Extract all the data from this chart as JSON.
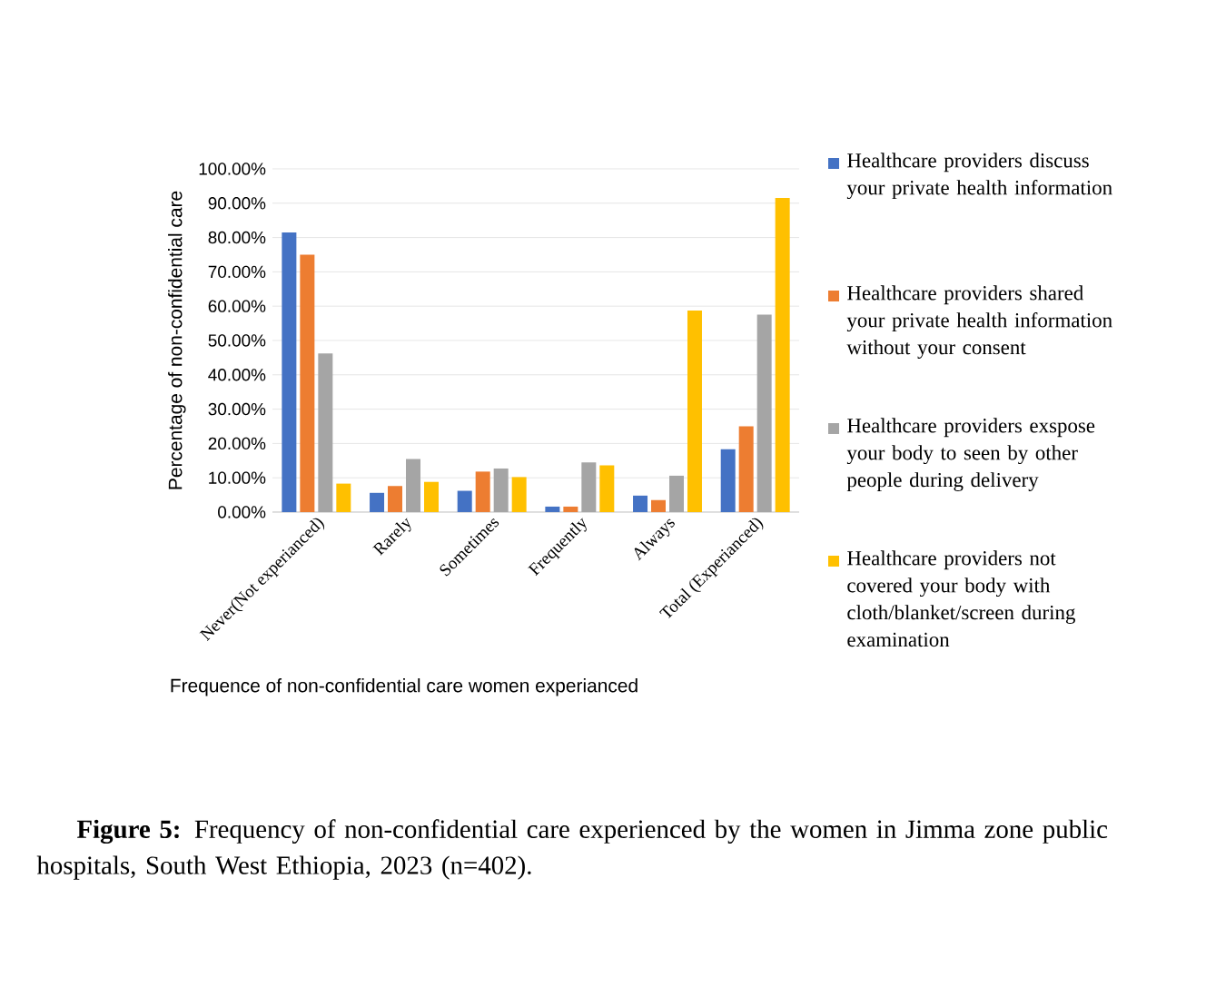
{
  "chart_data": {
    "type": "bar",
    "xlabel": "Frequence of non-confidential care women experianced",
    "ylabel": "Percentage of non-confidential care",
    "categories": [
      "Never(Not experianced)",
      "Rarely",
      "Sometimes",
      "Frequently",
      "Always",
      "Total (Experianced)"
    ],
    "series": [
      {
        "name": "Healthcare providers discuss your private health information",
        "color": "#4472c4",
        "values": [
          81.5,
          5.6,
          6.2,
          1.6,
          4.8,
          18.3
        ]
      },
      {
        "name": "Healthcare providers shared your private health information  without your consent",
        "color": "#ed7d31",
        "values": [
          75,
          7.6,
          11.8,
          1.6,
          3.5,
          25
        ]
      },
      {
        "name": "Healthcare providers exspose your  body to seen by other people during delivery",
        "color": "#a5a5a5",
        "values": [
          46.2,
          15.5,
          12.7,
          14.5,
          10.6,
          57.5
        ]
      },
      {
        "name": "Healthcare providers not covered your body with cloth/blanket/screen during examination",
        "color": "#ffc000",
        "values": [
          8.3,
          8.8,
          10.2,
          13.6,
          58.7,
          91.5
        ]
      }
    ],
    "ylim": [
      0,
      100
    ],
    "yticks": [
      {
        "value": 0,
        "label": "0.00%"
      },
      {
        "value": 10,
        "label": "10.00%"
      },
      {
        "value": 20,
        "label": "20.00%"
      },
      {
        "value": 30,
        "label": "30.00%"
      },
      {
        "value": 40,
        "label": "40.00%"
      },
      {
        "value": 50,
        "label": "50.00%"
      },
      {
        "value": 60,
        "label": "60.00%"
      },
      {
        "value": 70,
        "label": "70.00%"
      },
      {
        "value": 80,
        "label": "80.00%"
      },
      {
        "value": 90,
        "label": "90.00%"
      },
      {
        "value": 100,
        "label": "100.00%"
      }
    ],
    "grid": "y",
    "legend": "right",
    "annotations": [
      "**Figure 5:** Frequency of non-confidential care experienced by the women in Jimma zone public hospitals, South West Ethiopia, 2023 (n=402)."
    ]
  }
}
